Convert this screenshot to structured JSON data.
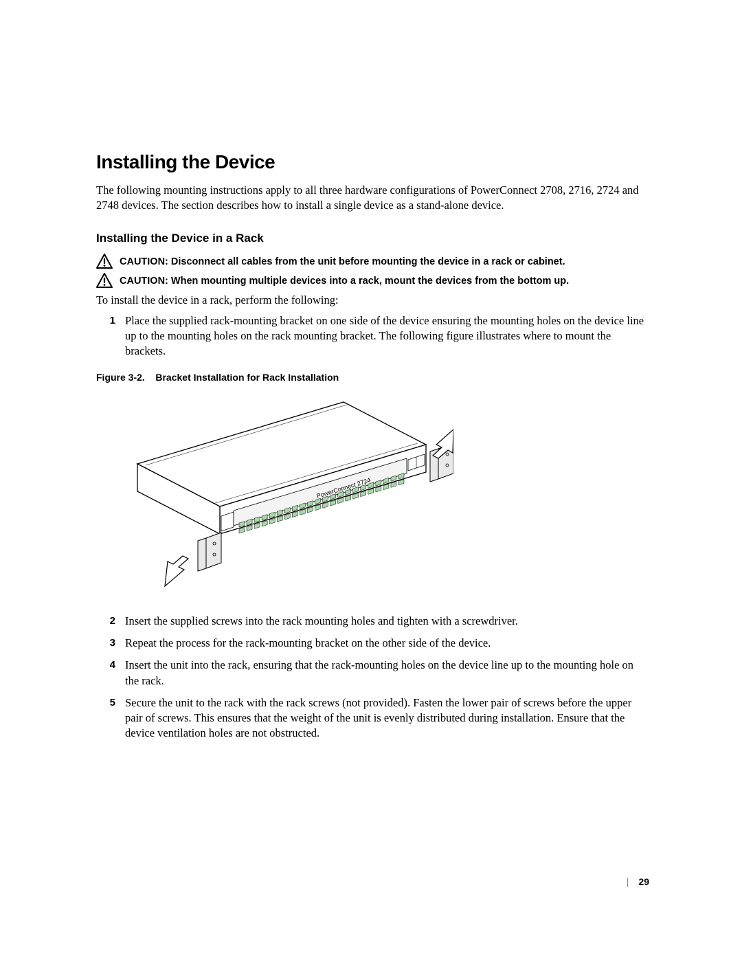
{
  "heading": "Installing the Device",
  "intro": "The following mounting instructions apply to all three hardware configurations of PowerConnect 2708, 2716, 2724 and 2748 devices. The section describes how to install a single device as a stand-alone device.",
  "subheading": "Installing the Device in a Rack",
  "caution_label": "CAUTION: ",
  "caution1": "Disconnect all cables from the unit before mounting the device in a rack or cabinet.",
  "caution2": "When mounting multiple devices into a rack, mount the devices from the bottom up.",
  "lead_line": "To install the device in a rack, perform the following:",
  "steps": {
    "n1": "1",
    "t1": "Place the supplied rack-mounting bracket on one side of the device ensuring the mounting holes on the device line up to the mounting holes on the rack mounting bracket. The following figure illustrates where to mount the brackets.",
    "n2": "2",
    "t2": "Insert the supplied screws into the rack mounting holes and tighten with a screwdriver.",
    "n3": "3",
    "t3": "Repeat the process for the rack-mounting bracket on the other side of the device.",
    "n4": "4",
    "t4": "Insert the unit into the rack, ensuring that the rack-mounting holes on the device line up to the mounting hole on the rack.",
    "n5": "5",
    "t5": "Secure the unit to the rack with the rack screws (not provided). Fasten the lower pair of screws before the upper pair of screws. This ensures that the weight of the unit is evenly distributed during installation. Ensure that the device ventilation holes are not obstructed."
  },
  "figure_caption_prefix": "Figure 3-2.",
  "figure_caption": "Bracket Installation for Rack Installation",
  "figure": {
    "label": "PowerConnect 2724",
    "stroke": "#000000",
    "fill_body": "#ffffff",
    "fill_bracket": "#e9e9e9",
    "fill_arrow": "#ffffff",
    "port_green": "#a8d8a8"
  },
  "page_number": "29",
  "colors": {
    "text": "#000000",
    "bg": "#ffffff"
  },
  "fonts": {
    "heading_size": 28,
    "sub_size": 17,
    "body_size": 16.5,
    "caption_size": 14
  }
}
